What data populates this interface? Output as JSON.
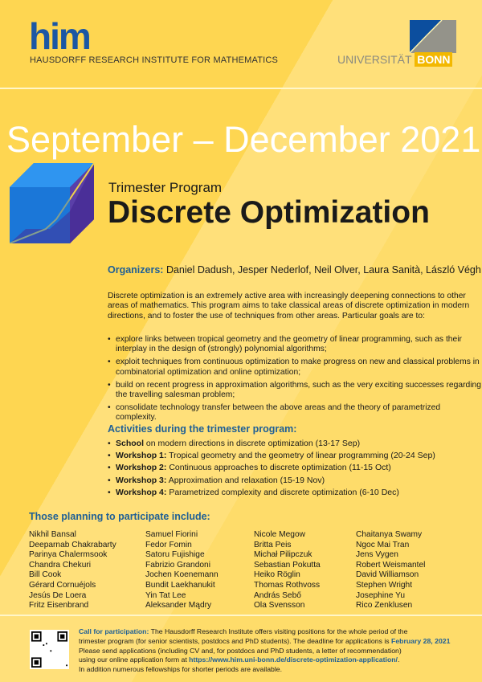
{
  "header": {
    "logo_text": "him",
    "institute": "HAUSDORFF RESEARCH INSTITUTE FOR MATHEMATICS",
    "university": "UNIVERSITÄT",
    "university_accent": "BONN"
  },
  "dates": "September – December 2021",
  "program": {
    "kind": "Trimester Program",
    "title": "Discrete Optimization"
  },
  "organizers": {
    "label": "Organizers:",
    "names": "Daniel Dadush, Jesper Nederlof, Neil Olver, Laura Sanità, László Végh"
  },
  "intro": "Discrete optimization is an extremely active area with increasingly deepening connections to other areas of mathematics. This program aims to take classical areas of discrete optimization in modern directions, and to foster the use of techniques from other areas. Particular goals are to:",
  "goals": [
    "explore links between tropical geometry and the geometry of linear programming, such as their interplay in the design of (strongly) polynomial algorithms;",
    "exploit techniques from continuous optimization to make progress on new and classical problems in combinatorial optimization and online optimization;",
    "build on recent progress in approximation algorithms, such as the very exciting successes regarding the travelling salesman problem;",
    "consolidate technology transfer between the above areas and the theory of parametrized complexity."
  ],
  "activities": {
    "heading": "Activities during the trimester program:",
    "items": [
      {
        "label": "School",
        "text": " on modern directions in discrete optimization (13-17 Sep)"
      },
      {
        "label": "Workshop 1:",
        "text": " Tropical geometry and the geometry of linear programming (20-24 Sep)"
      },
      {
        "label": "Workshop 2:",
        "text": " Continuous approaches to discrete optimization (11-15 Oct)"
      },
      {
        "label": "Workshop 3:",
        "text": " Approximation and relaxation (15-19 Nov)"
      },
      {
        "label": "Workshop 4:",
        "text": " Parametrized complexity and discrete optimization (6-10 Dec)"
      }
    ]
  },
  "participants": {
    "heading": "Those planning to participate include:",
    "columns": [
      [
        "Nikhil Bansal",
        "Deeparnab Chakrabarty",
        "Parinya Chalermsook",
        "Chandra Chekuri",
        "Bill Cook",
        "Gérard Cornuéjols",
        "Jesús De Loera",
        "Fritz Eisenbrand"
      ],
      [
        "Samuel Fiorini",
        "Fedor Fomin",
        "Satoru Fujishige",
        "Fabrizio Grandoni",
        "Jochen Koenemann",
        "Bundit Laekhanukit",
        "Yin Tat Lee",
        "Aleksander Mądry"
      ],
      [
        "Nicole Megow",
        "Britta Peis",
        "Michał Pilipczuk",
        "Sebastian Pokutta",
        "Heiko Röglin",
        "Thomas Rothvoss",
        "András Sebő",
        "Ola Svensson"
      ],
      [
        "Chaitanya Swamy",
        "Ngoc Mai Tran",
        "Jens Vygen",
        "Robert Weismantel",
        "David Williamson",
        "Stephen Wright",
        "Josephine Yu",
        "Rico Zenklusen"
      ]
    ]
  },
  "call": {
    "label": "Call for participation:",
    "line1": " The Hausdorff Research Institute offers visiting positions for the whole period of the",
    "line2": "trimester program (for senior scientists, postdocs and PhD students). The deadline for applications is ",
    "deadline": "February 28, 2021",
    "line3": "Please send applications (including CV and, for postdocs and PhD students, a letter of recommendation)",
    "line4": "using our online application form at ",
    "url": "https://www.him.uni-bonn.de/discrete-optimization-application/",
    "line4_end": ".",
    "line5": "In addition numerous fellowships for shorter periods are available."
  },
  "colors": {
    "background": "#fed651",
    "accent_blue": "#1f5f95",
    "logo_blue": "#1b57a4",
    "bonn_yellow": "#f3b800"
  }
}
